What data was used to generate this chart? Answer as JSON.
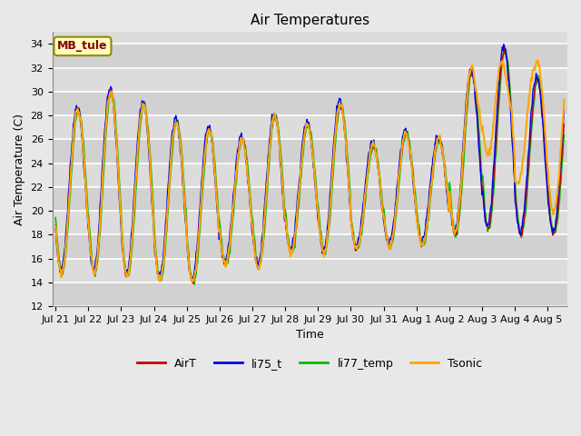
{
  "title": "Air Temperatures",
  "xlabel": "Time",
  "ylabel": "Air Temperature (C)",
  "ylim": [
    12,
    35
  ],
  "yticks": [
    12,
    14,
    16,
    18,
    20,
    22,
    24,
    26,
    28,
    30,
    32,
    34
  ],
  "site_label": "MB_tule",
  "site_label_color": "#8B0000",
  "site_label_bg": "#FFFFC0",
  "site_label_border": "#8B8B00",
  "legend_entries": [
    "AirT",
    "li75_t",
    "li77_temp",
    "Tsonic"
  ],
  "line_colors": [
    "#CC0000",
    "#0000EE",
    "#00BB00",
    "#FFA500"
  ],
  "background_color": "#E8E8E8",
  "plot_bg_color": "#DCDCDC",
  "grid_color": "#FFFFFF",
  "n_points": 800,
  "day_mins": [
    14.8,
    14.8,
    14.5,
    14.2,
    14.0,
    15.5,
    15.2,
    16.5,
    16.5,
    16.8,
    17.0,
    17.2,
    18.0,
    18.5,
    18.0,
    18.5
  ],
  "day_maxs": [
    28.5,
    30.0,
    29.0,
    27.5,
    26.8,
    26.0,
    28.0,
    27.2,
    29.0,
    25.5,
    26.5,
    26.0,
    31.5,
    33.5,
    31.0,
    29.5
  ],
  "tick_labels": [
    "Jul 21",
    "Jul 22",
    "Jul 23",
    "Jul 24",
    "Jul 25",
    "Jul 26",
    "Jul 27",
    "Jul 28",
    "Jul 29",
    "Jul 30",
    "Jul 31",
    "Aug 1",
    "Aug 2",
    "Aug 3",
    "Aug 4",
    "Aug 5"
  ]
}
